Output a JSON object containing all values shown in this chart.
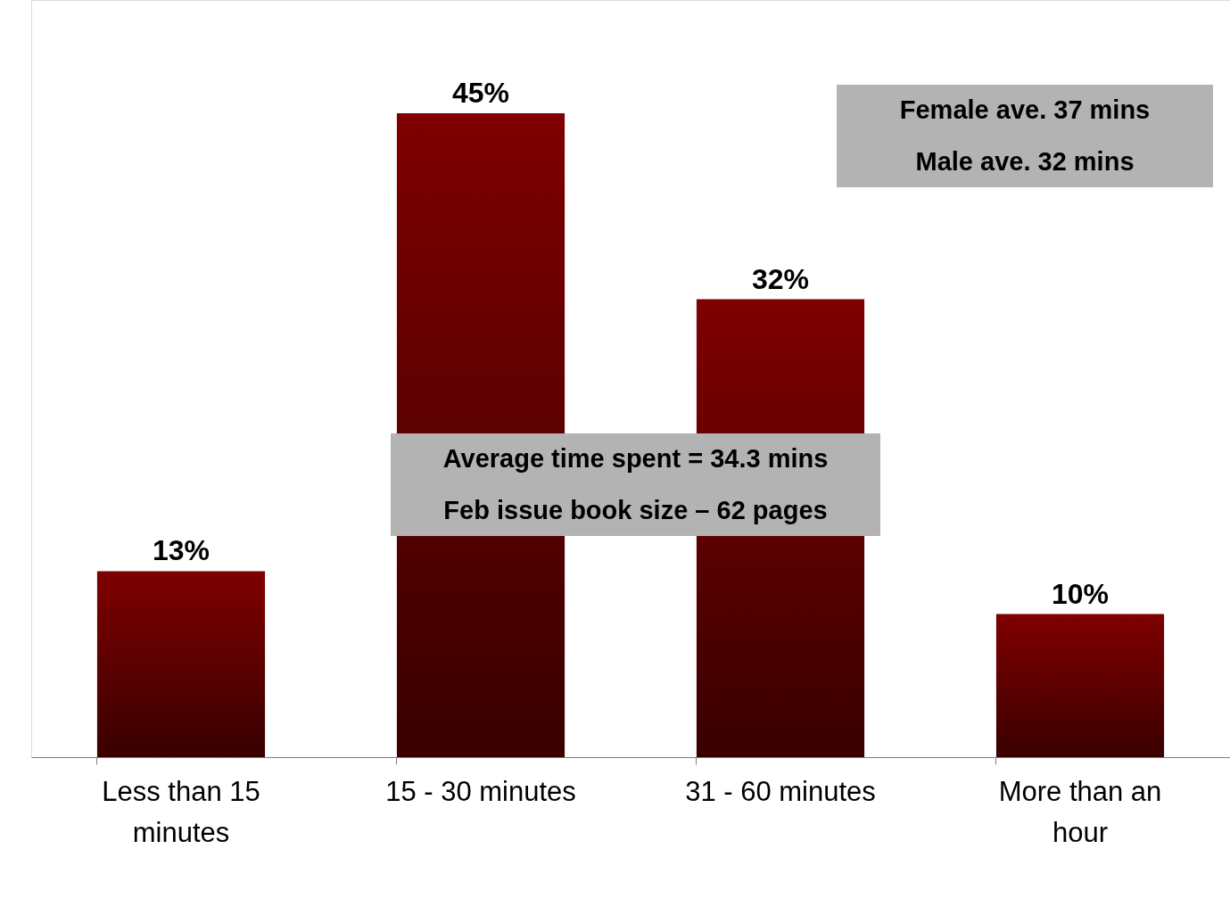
{
  "chart_data": {
    "type": "bar",
    "categories": [
      "Less than 15 minutes",
      "15 - 30 minutes",
      "31 - 60 minutes",
      "More than an hour"
    ],
    "values": [
      13,
      45,
      32,
      10
    ],
    "value_labels": [
      "13%",
      "45%",
      "32%",
      "10%"
    ],
    "color": "#7f0000",
    "grid": false,
    "annotations": [
      "Female ave. 37 mins\nMale ave. 32 mins",
      "Average time spent = 34.3 mins\nFeb issue book size – 62 pages"
    ]
  }
}
